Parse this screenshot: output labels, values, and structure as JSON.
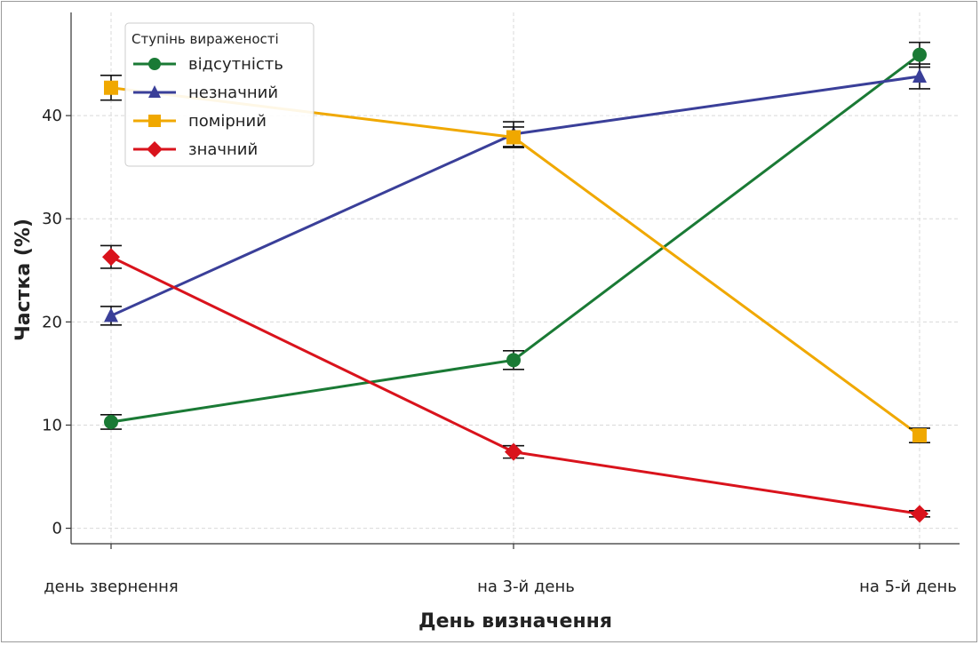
{
  "chart_data": {
    "type": "line",
    "title": "",
    "xlabel": "День визначення",
    "ylabel": "Частка (%)",
    "categories": [
      "день звернення",
      "на 3-й день",
      "на 5-й день"
    ],
    "ylim": [
      -1.5,
      50
    ],
    "yticks": [
      0,
      10,
      20,
      30,
      40
    ],
    "grid": true,
    "legend": {
      "title": "Ступінь вираженості",
      "position": "top-left"
    },
    "series": [
      {
        "name": "відсутність",
        "color": "#1a7a35",
        "marker": "circle",
        "values": [
          10.3,
          16.3,
          45.9
        ],
        "errors": [
          0.7,
          0.9,
          1.2
        ]
      },
      {
        "name": "незначний",
        "color": "#3a3f99",
        "marker": "triangle",
        "values": [
          20.6,
          38.2,
          43.8
        ],
        "errors": [
          0.9,
          1.2,
          1.2
        ]
      },
      {
        "name": "помірний",
        "color": "#f0a800",
        "marker": "square",
        "values": [
          42.7,
          37.9,
          9.0
        ],
        "errors": [
          1.2,
          1.0,
          0.7
        ]
      },
      {
        "name": "значний",
        "color": "#d9131c",
        "marker": "diamond",
        "values": [
          26.3,
          7.4,
          1.4
        ],
        "errors": [
          1.1,
          0.6,
          0.3
        ]
      }
    ]
  }
}
